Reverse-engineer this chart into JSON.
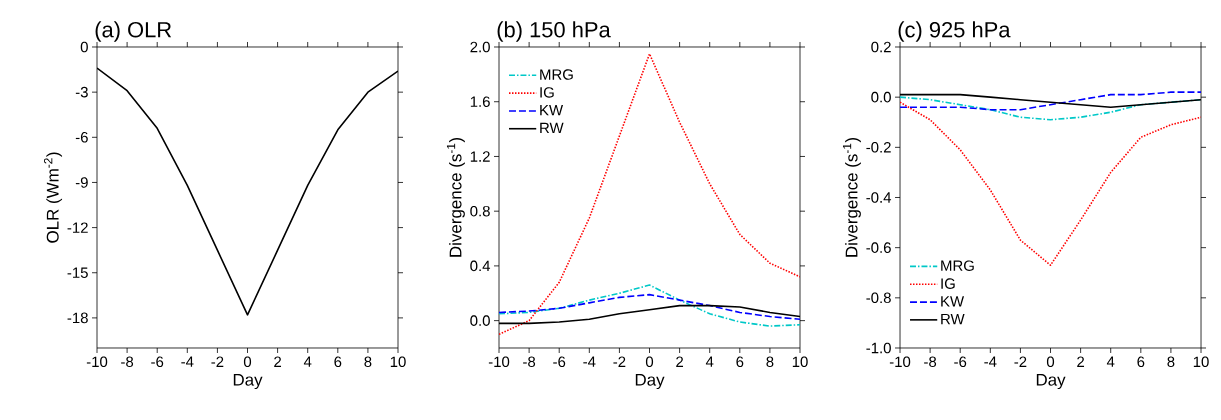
{
  "chart_data": [
    {
      "type": "line",
      "title": "(a) OLR",
      "xlabel": "Day",
      "ylabel": "OLR (Wm$^{-2}$)",
      "x": [
        -10,
        -8,
        -6,
        -4,
        -2,
        0,
        2,
        4,
        6,
        8,
        10
      ],
      "series": [
        {
          "color": "#000000",
          "line_style": "solid",
          "values": [
            -1.4,
            -2.9,
            -5.4,
            -9.2,
            -13.5,
            -17.8,
            -13.5,
            -9.2,
            -5.5,
            -3.0,
            -1.6
          ]
        }
      ],
      "xlim": [
        -10,
        10
      ],
      "xticks": [
        -10,
        -8,
        -6,
        -4,
        -2,
        0,
        2,
        4,
        6,
        8,
        10
      ],
      "ylim": [
        -20,
        0
      ],
      "yticks": [
        -18,
        -15,
        -12,
        -9,
        -6,
        -3,
        0
      ],
      "grid": false,
      "legend": false
    },
    {
      "type": "line",
      "title": "(b) 150 hPa",
      "xlabel": "Day",
      "ylabel": "Divergence (s$^{-1}$)",
      "x": [
        -10,
        -8,
        -6,
        -4,
        -2,
        0,
        2,
        4,
        6,
        8,
        10
      ],
      "series": [
        {
          "name": "MRG",
          "color": "#00c8c8",
          "line_style": "dashdot",
          "values": [
            0.05,
            0.06,
            0.09,
            0.15,
            0.2,
            0.26,
            0.15,
            0.05,
            -0.01,
            -0.04,
            -0.03
          ]
        },
        {
          "name": "IG",
          "color": "#ff0000",
          "line_style": "dotted",
          "values": [
            -0.1,
            0.0,
            0.28,
            0.75,
            1.35,
            1.95,
            1.45,
            1.0,
            0.63,
            0.42,
            0.32
          ]
        },
        {
          "name": "KW",
          "color": "#0000ff",
          "line_style": "dashed",
          "values": [
            0.06,
            0.07,
            0.09,
            0.13,
            0.17,
            0.19,
            0.15,
            0.11,
            0.06,
            0.03,
            0.01
          ]
        },
        {
          "name": "RW",
          "color": "#000000",
          "line_style": "solid",
          "values": [
            -0.02,
            -0.02,
            -0.01,
            0.01,
            0.05,
            0.08,
            0.11,
            0.11,
            0.1,
            0.06,
            0.03
          ]
        }
      ],
      "xlim": [
        -10,
        10
      ],
      "xticks": [
        -10,
        -8,
        -6,
        -4,
        -2,
        0,
        2,
        4,
        6,
        8,
        10
      ],
      "ylim": [
        -0.2,
        2.0
      ],
      "yticks": [
        {
          "value": 0,
          "label": "0.0"
        },
        {
          "value": 0.4,
          "label": "0.4"
        },
        {
          "value": 0.8,
          "label": "0.8"
        },
        {
          "value": 1.2,
          "label": "1.2"
        },
        {
          "value": 1.6,
          "label": "1.6"
        },
        {
          "value": 2.0,
          "label": "2.0"
        }
      ],
      "grid": false,
      "legend": "top left"
    },
    {
      "type": "line",
      "title": "(c) 925 hPa",
      "xlabel": "Day",
      "ylabel": "Divergence (s$^{-1}$)",
      "x": [
        -10,
        -8,
        -6,
        -4,
        -2,
        0,
        2,
        4,
        6,
        8,
        10
      ],
      "series": [
        {
          "name": "MRG",
          "color": "#00c8c8",
          "line_style": "dashdot",
          "values": [
            0.0,
            -0.01,
            -0.03,
            -0.05,
            -0.08,
            -0.09,
            -0.08,
            -0.06,
            -0.03,
            -0.02,
            -0.01
          ]
        },
        {
          "name": "IG",
          "color": "#ff0000",
          "line_style": "dotted",
          "values": [
            -0.02,
            -0.09,
            -0.21,
            -0.37,
            -0.57,
            -0.67,
            -0.49,
            -0.3,
            -0.16,
            -0.11,
            -0.08
          ]
        },
        {
          "name": "KW",
          "color": "#0000ff",
          "line_style": "dashed",
          "values": [
            -0.04,
            -0.04,
            -0.04,
            -0.05,
            -0.05,
            -0.03,
            -0.01,
            0.01,
            0.01,
            0.02,
            0.02
          ]
        },
        {
          "name": "RW",
          "color": "#000000",
          "line_style": "solid",
          "values": [
            0.01,
            0.01,
            0.01,
            0.0,
            -0.01,
            -0.02,
            -0.03,
            -0.04,
            -0.03,
            -0.02,
            -0.01
          ]
        }
      ],
      "xlim": [
        -10,
        10
      ],
      "xticks": [
        -10,
        -8,
        -6,
        -4,
        -2,
        0,
        2,
        4,
        6,
        8,
        10
      ],
      "ylim": [
        -1.0,
        0.2
      ],
      "yticks": [
        {
          "value": -1.0,
          "label": "-1.0"
        },
        {
          "value": -0.8,
          "label": "-0.8"
        },
        {
          "value": -0.6,
          "label": "-0.6"
        },
        {
          "value": -0.4,
          "label": "-0.4"
        },
        {
          "value": -0.2,
          "label": "-0.2"
        },
        {
          "value": 0,
          "label": "0.0"
        },
        {
          "value": 0.2,
          "label": "0.2"
        }
      ],
      "grid": false,
      "legend": "bottom left"
    }
  ]
}
